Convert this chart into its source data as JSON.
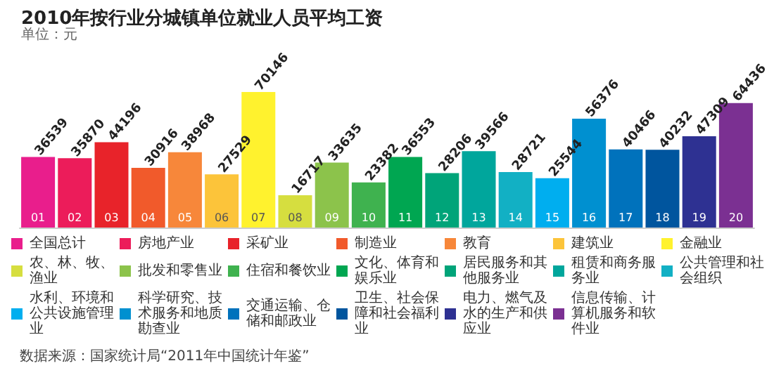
{
  "chart_data": {
    "type": "bar",
    "title": "2010年按行业分城镇单位就业人员平均工资",
    "subtitle": "单位：元",
    "annotations": [
      "数据来源：国家统计局“2011年中国统计年鉴”"
    ],
    "categories": [
      "01",
      "02",
      "03",
      "04",
      "05",
      "06",
      "07",
      "08",
      "09",
      "10",
      "11",
      "12",
      "13",
      "14",
      "15",
      "16",
      "17",
      "18",
      "19",
      "20"
    ],
    "series": [
      {
        "name": "全国总计",
        "color": "#e91e8c",
        "values": [
          36539,
          null,
          null,
          null,
          null,
          null,
          null,
          null,
          null,
          null,
          null,
          null,
          null,
          null,
          null,
          null,
          null,
          null,
          null,
          null
        ]
      },
      {
        "name": "房地产业",
        "color": "#ec1c5a",
        "values": [
          null,
          35870,
          null,
          null,
          null,
          null,
          null,
          null,
          null,
          null,
          null,
          null,
          null,
          null,
          null,
          null,
          null,
          null,
          null,
          null
        ]
      },
      {
        "name": "采矿业",
        "color": "#e8232a",
        "values": [
          null,
          null,
          44196,
          null,
          null,
          null,
          null,
          null,
          null,
          null,
          null,
          null,
          null,
          null,
          null,
          null,
          null,
          null,
          null,
          null
        ]
      },
      {
        "name": "制造业",
        "color": "#f15a2b",
        "values": [
          null,
          null,
          null,
          30916,
          null,
          null,
          null,
          null,
          null,
          null,
          null,
          null,
          null,
          null,
          null,
          null,
          null,
          null,
          null,
          null
        ]
      },
      {
        "name": "教育",
        "color": "#f7873a",
        "values": [
          null,
          null,
          null,
          null,
          38968,
          null,
          null,
          null,
          null,
          null,
          null,
          null,
          null,
          null,
          null,
          null,
          null,
          null,
          null,
          null
        ]
      },
      {
        "name": "建筑业",
        "color": "#fcc43a",
        "values": [
          null,
          null,
          null,
          null,
          null,
          27529,
          null,
          null,
          null,
          null,
          null,
          null,
          null,
          null,
          null,
          null,
          null,
          null,
          null,
          null
        ]
      },
      {
        "name": "金融业",
        "color": "#fff22e",
        "values": [
          null,
          null,
          null,
          null,
          null,
          null,
          70146,
          null,
          null,
          null,
          null,
          null,
          null,
          null,
          null,
          null,
          null,
          null,
          null,
          null
        ]
      },
      {
        "name": "农、林、牧、渔业",
        "color": "#d6de3f",
        "values": [
          null,
          null,
          null,
          null,
          null,
          null,
          null,
          16717,
          null,
          null,
          null,
          null,
          null,
          null,
          null,
          null,
          null,
          null,
          null,
          null
        ]
      },
      {
        "name": "批发和零售业",
        "color": "#8cc34b",
        "values": [
          null,
          null,
          null,
          null,
          null,
          null,
          null,
          null,
          33635,
          null,
          null,
          null,
          null,
          null,
          null,
          null,
          null,
          null,
          null,
          null
        ]
      },
      {
        "name": "住宿和餐饮业",
        "color": "#3fb24f",
        "values": [
          null,
          null,
          null,
          null,
          null,
          null,
          null,
          null,
          null,
          23382,
          null,
          null,
          null,
          null,
          null,
          null,
          null,
          null,
          null,
          null
        ]
      },
      {
        "name": "文化、体育和娱乐业",
        "color": "#00a651",
        "values": [
          null,
          null,
          null,
          null,
          null,
          null,
          null,
          null,
          null,
          null,
          36553,
          null,
          null,
          null,
          null,
          null,
          null,
          null,
          null,
          null
        ]
      },
      {
        "name": "居民服务和其他服务业",
        "color": "#00a479",
        "values": [
          null,
          null,
          null,
          null,
          null,
          null,
          null,
          null,
          null,
          null,
          null,
          28206,
          null,
          null,
          null,
          null,
          null,
          null,
          null,
          null
        ]
      },
      {
        "name": "租赁和商务服务业",
        "color": "#00a69c",
        "values": [
          null,
          null,
          null,
          null,
          null,
          null,
          null,
          null,
          null,
          null,
          null,
          null,
          39566,
          null,
          null,
          null,
          null,
          null,
          null,
          null
        ]
      },
      {
        "name": "公共管理和社会组织",
        "color": "#12b0c4",
        "values": [
          null,
          null,
          null,
          null,
          null,
          null,
          null,
          null,
          null,
          null,
          null,
          null,
          null,
          28721,
          null,
          null,
          null,
          null,
          null,
          null
        ]
      },
      {
        "name": "水利、环境和公共设施管理业",
        "color": "#00aeef",
        "values": [
          null,
          null,
          null,
          null,
          null,
          null,
          null,
          null,
          null,
          null,
          null,
          null,
          null,
          null,
          25544,
          null,
          null,
          null,
          null,
          null
        ]
      },
      {
        "name": "科学研究、技术服务和地质勘查业",
        "color": "#0090d0",
        "values": [
          null,
          null,
          null,
          null,
          null,
          null,
          null,
          null,
          null,
          null,
          null,
          null,
          null,
          null,
          null,
          56376,
          null,
          null,
          null,
          null
        ]
      },
      {
        "name": "交通运输、仓储和邮政业",
        "color": "#0072bc",
        "values": [
          null,
          null,
          null,
          null,
          null,
          null,
          null,
          null,
          null,
          null,
          null,
          null,
          null,
          null,
          null,
          null,
          40466,
          null,
          null,
          null
        ]
      },
      {
        "name": "卫生、社会保障和社会福利业",
        "color": "#00559e",
        "values": [
          null,
          null,
          null,
          null,
          null,
          null,
          null,
          null,
          null,
          null,
          null,
          null,
          null,
          null,
          null,
          null,
          null,
          40232,
          null,
          null
        ]
      },
      {
        "name": "电力、燃气及水的生产和供应业",
        "color": "#2e3192",
        "values": [
          null,
          null,
          null,
          null,
          null,
          null,
          null,
          null,
          null,
          null,
          null,
          null,
          null,
          null,
          null,
          null,
          null,
          null,
          47309,
          null
        ]
      },
      {
        "name": "信息传输、计算机服务和软件业",
        "color": "#7b3092",
        "values": [
          null,
          null,
          null,
          null,
          null,
          null,
          null,
          null,
          null,
          null,
          null,
          null,
          null,
          null,
          null,
          null,
          null,
          null,
          null,
          64436
        ]
      }
    ],
    "data_labels": true,
    "legend": "bottom"
  }
}
